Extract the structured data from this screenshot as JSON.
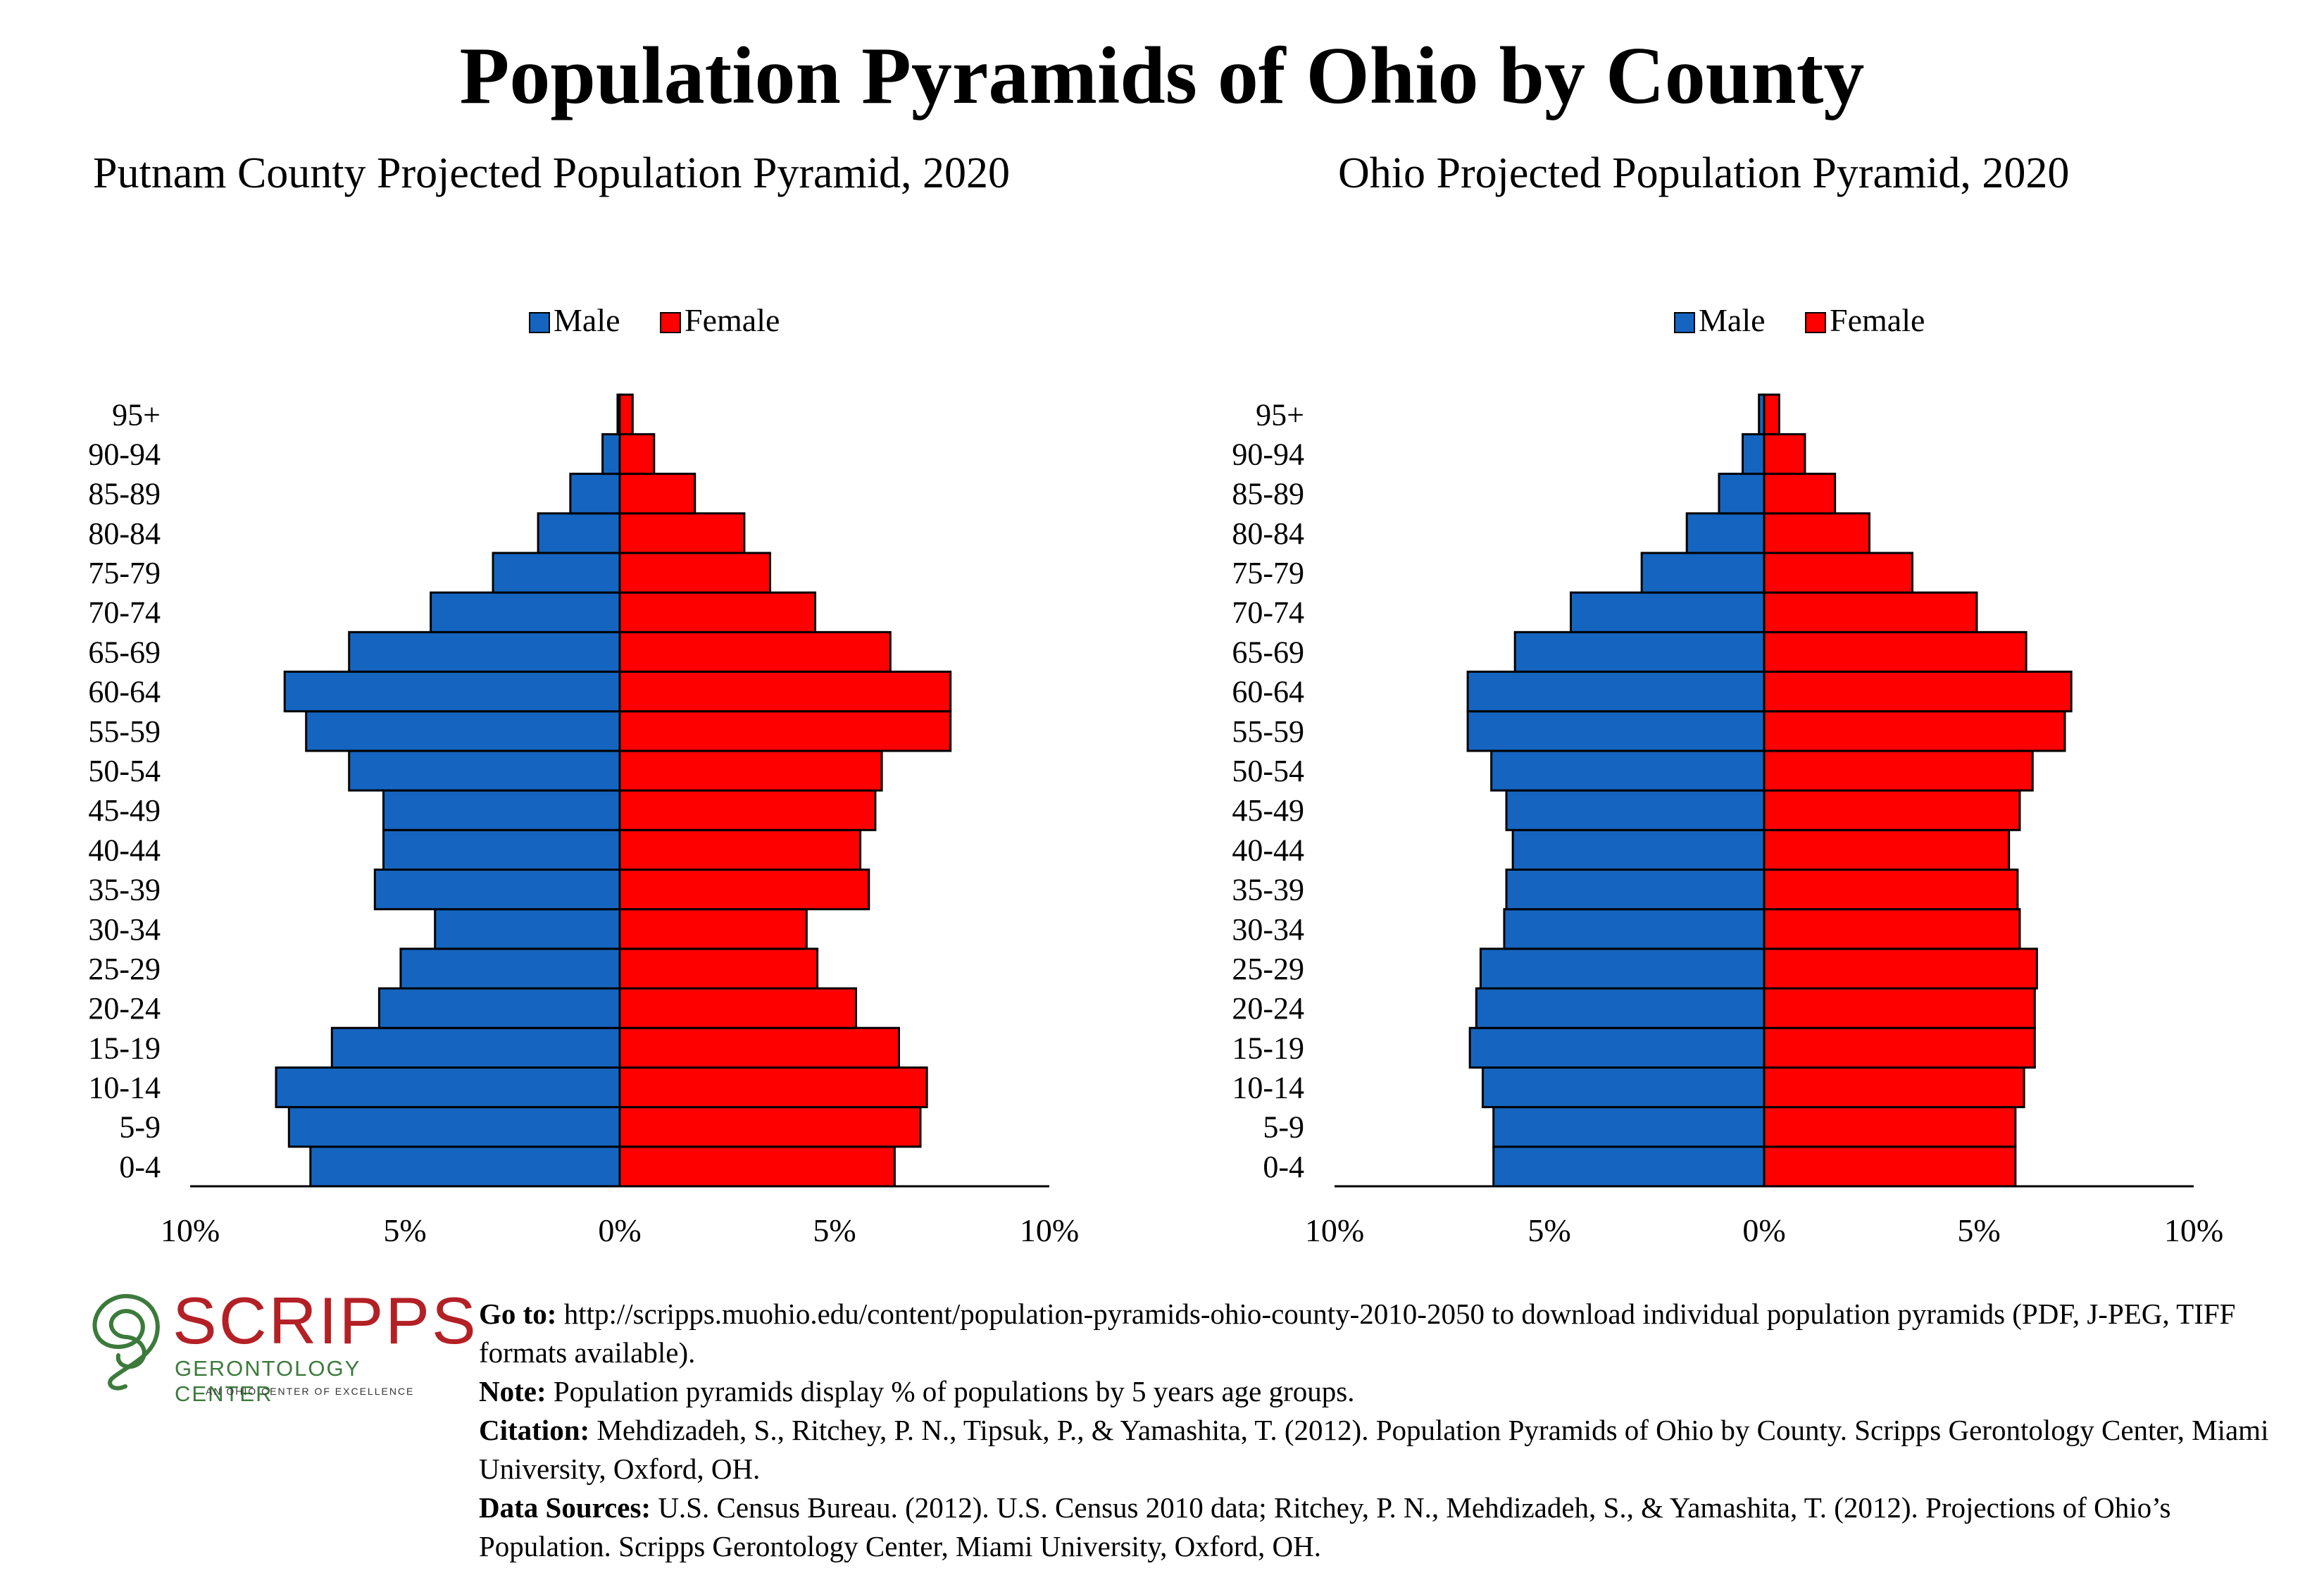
{
  "title": "Population Pyramids of Ohio by County",
  "colors": {
    "male": "#1565c0",
    "female": "#ff0000",
    "outline": "#000000"
  },
  "chart_data": [
    {
      "type": "bar",
      "title": "Putnam County Projected Population Pyramid, 2020",
      "orientation": "horizontal",
      "legend_position": "top",
      "xlim": [
        -10,
        10
      ],
      "x_ticks": [
        "10%",
        "5%",
        "0%",
        "5%",
        "10%"
      ],
      "categories": [
        "0-4",
        "5-9",
        "10-14",
        "15-19",
        "20-24",
        "25-29",
        "30-34",
        "35-39",
        "40-44",
        "45-49",
        "50-54",
        "55-59",
        "60-64",
        "65-69",
        "70-74",
        "75-79",
        "80-84",
        "85-89",
        "90-94",
        "95+"
      ],
      "series": [
        {
          "name": "Male",
          "values": [
            7.2,
            7.7,
            8.0,
            6.7,
            5.6,
            5.1,
            4.3,
            5.7,
            5.5,
            5.5,
            6.3,
            7.3,
            7.8,
            6.3,
            4.4,
            2.95,
            1.9,
            1.15,
            0.4,
            0.05
          ]
        },
        {
          "name": "Female",
          "values": [
            6.4,
            7.0,
            7.15,
            6.5,
            5.5,
            4.6,
            4.35,
            5.8,
            5.6,
            5.95,
            6.1,
            7.7,
            7.7,
            6.3,
            4.55,
            3.5,
            2.9,
            1.75,
            0.8,
            0.3
          ]
        }
      ]
    },
    {
      "type": "bar",
      "title": "Ohio Projected Population Pyramid, 2020",
      "orientation": "horizontal",
      "legend_position": "top",
      "xlim": [
        -10,
        10
      ],
      "x_ticks": [
        "10%",
        "5%",
        "0%",
        "5%",
        "10%"
      ],
      "categories": [
        "0-4",
        "5-9",
        "10-14",
        "15-19",
        "20-24",
        "25-29",
        "30-34",
        "35-39",
        "40-44",
        "45-49",
        "50-54",
        "55-59",
        "60-64",
        "65-69",
        "70-74",
        "75-79",
        "80-84",
        "85-89",
        "90-94",
        "95+"
      ],
      "series": [
        {
          "name": "Male",
          "values": [
            6.3,
            6.3,
            6.55,
            6.85,
            6.7,
            6.6,
            6.05,
            6.0,
            5.85,
            6.0,
            6.35,
            6.9,
            6.9,
            5.8,
            4.5,
            2.85,
            1.8,
            1.05,
            0.5,
            0.12
          ]
        },
        {
          "name": "Female",
          "values": [
            5.85,
            5.85,
            6.05,
            6.3,
            6.3,
            6.35,
            5.95,
            5.9,
            5.7,
            5.95,
            6.25,
            7.0,
            7.15,
            6.1,
            4.95,
            3.45,
            2.45,
            1.65,
            0.95,
            0.35
          ]
        }
      ]
    }
  ],
  "logo": {
    "name": "SCRIPPS",
    "subtitle": "GERONTOLOGY CENTER",
    "tagline": "AN OHIO CENTER OF EXCELLENCE"
  },
  "footer": {
    "goto_label": "Go to:",
    "goto_text": " http://scripps.muohio.edu/content/population-pyramids-ohio-county-2010-2050 to download individual population pyramids (PDF, J-PEG, TIFF formats available).",
    "note_label": "Note:",
    "note_text": " Population pyramids display % of populations by 5 years age groups.",
    "citation_label": "Citation:",
    "citation_text": " Mehdizadeh, S., Ritchey, P. N., Tipsuk, P., & Yamashita, T. (2012). Population Pyramids of Ohio by County. Scripps Gerontology Center, Miami University, Oxford, OH.",
    "sources_label": "Data Sources:",
    "sources_text": " U.S. Census Bureau. (2012). U.S. Census 2010 data; Ritchey, P. N., Mehdizadeh, S., & Yamashita, T. (2012). Projections of Ohio’s Population. Scripps Gerontology Center, Miami University, Oxford, OH."
  }
}
